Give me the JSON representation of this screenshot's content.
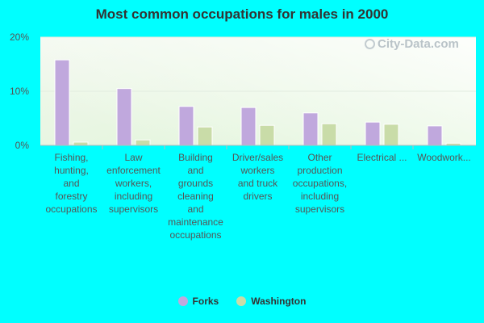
{
  "title": "Most common occupations for males in 2000",
  "watermark": "City-Data.com",
  "colors": {
    "forks": "#c0a8dd",
    "washington": "#c9dca8",
    "background": "#00FFFF"
  },
  "chart_data": {
    "type": "bar",
    "title": "Most common occupations for males in 2000",
    "categories": [
      [
        "Fishing,",
        "hunting,",
        "and",
        "forestry",
        "occupations"
      ],
      [
        "Law",
        "enforcement",
        "workers,",
        "including",
        "supervisors"
      ],
      [
        "Building",
        "and",
        "grounds",
        "cleaning",
        "and",
        "maintenance",
        "occupations"
      ],
      [
        "Driver/sales",
        "workers",
        "and truck",
        "drivers"
      ],
      [
        "Other",
        "production",
        "occupations,",
        "including",
        "supervisors"
      ],
      [
        "Electrical ..."
      ],
      [
        "Woodwork..."
      ]
    ],
    "series": [
      {
        "name": "Forks",
        "values": [
          15.8,
          10.5,
          7.2,
          7.0,
          6.0,
          4.3,
          3.6
        ]
      },
      {
        "name": "Washington",
        "values": [
          0.6,
          1.0,
          3.4,
          3.7,
          4.0,
          3.9,
          0.4
        ]
      }
    ],
    "yticks": [
      "0%",
      "10%",
      "20%"
    ],
    "ylim": [
      0,
      20
    ],
    "grid": true,
    "legend_position": "bottom-center"
  },
  "legend": [
    {
      "label": "Forks"
    },
    {
      "label": "Washington"
    }
  ]
}
